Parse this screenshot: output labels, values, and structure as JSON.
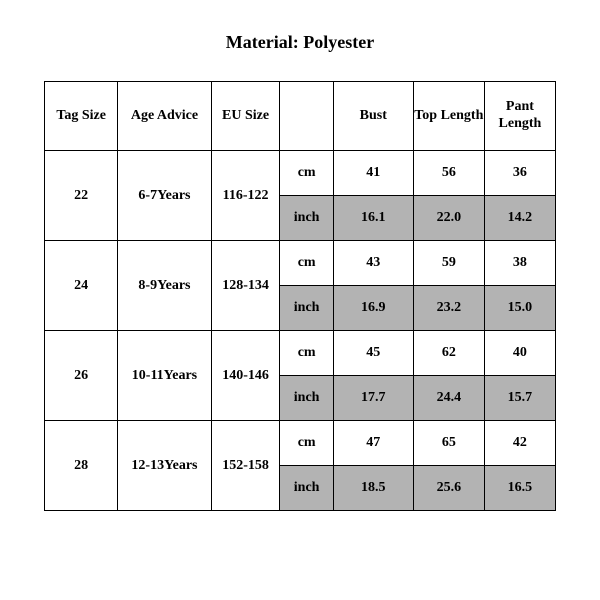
{
  "title": "Material: Polyester",
  "table": {
    "columns": [
      "Tag Size",
      "Age Advice",
      "EU Size",
      "",
      "Bust",
      "Top Length",
      "Pant Length"
    ],
    "unit_labels": {
      "cm": "cm",
      "inch": "inch"
    },
    "background_color": "#ffffff",
    "border_color": "#000000",
    "shaded_color": "#b3b3b3",
    "font_family": "Times New Roman",
    "header_fontsize": 14,
    "cell_fontsize": 14,
    "rows": [
      {
        "tag": "22",
        "age": "6-7Years",
        "eu": "116-122",
        "cm": {
          "bust": "41",
          "top": "56",
          "pant": "36"
        },
        "inch": {
          "bust": "16.1",
          "top": "22.0",
          "pant": "14.2"
        }
      },
      {
        "tag": "24",
        "age": "8-9Years",
        "eu": "128-134",
        "cm": {
          "bust": "43",
          "top": "59",
          "pant": "38"
        },
        "inch": {
          "bust": "16.9",
          "top": "23.2",
          "pant": "15.0"
        }
      },
      {
        "tag": "26",
        "age": "10-11Years",
        "eu": "140-146",
        "cm": {
          "bust": "45",
          "top": "62",
          "pant": "40"
        },
        "inch": {
          "bust": "17.7",
          "top": "24.4",
          "pant": "15.7"
        }
      },
      {
        "tag": "28",
        "age": "12-13Years",
        "eu": "152-158",
        "cm": {
          "bust": "47",
          "top": "65",
          "pant": "42"
        },
        "inch": {
          "bust": "18.5",
          "top": "25.6",
          "pant": "16.5"
        }
      }
    ]
  }
}
